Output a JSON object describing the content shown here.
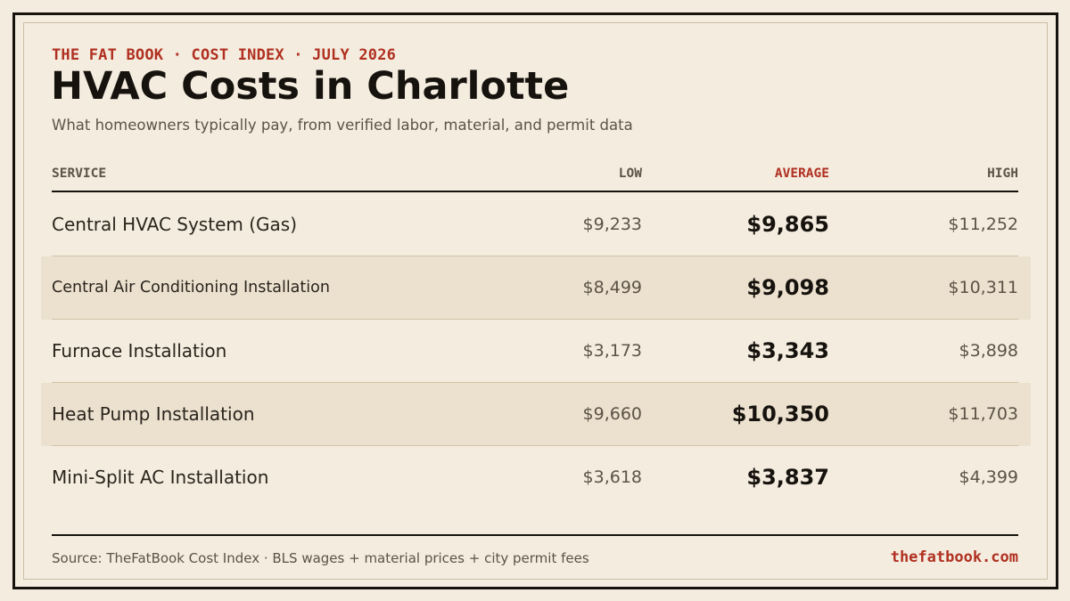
{
  "header": {
    "eyebrow": "THE FAT BOOK · COST INDEX · JULY 2026",
    "title": "HVAC Costs in Charlotte",
    "subtitle": "What homeowners typically pay, from verified labor, material, and permit data"
  },
  "table": {
    "columns": {
      "service": "SERVICE",
      "low": "LOW",
      "average": "AVERAGE",
      "high": "HIGH"
    },
    "rows": [
      {
        "service": "Central HVAC System (Gas)",
        "low": "$9,233",
        "average": "$9,865",
        "high": "$11,252"
      },
      {
        "service": "Central Air Conditioning Installation",
        "low": "$8,499",
        "average": "$9,098",
        "high": "$10,311"
      },
      {
        "service": "Furnace Installation",
        "low": "$3,173",
        "average": "$3,343",
        "high": "$3,898"
      },
      {
        "service": "Heat Pump Installation",
        "low": "$9,660",
        "average": "$10,350",
        "high": "$11,703"
      },
      {
        "service": "Mini-Split AC Installation",
        "low": "$3,618",
        "average": "$3,837",
        "high": "$4,399"
      }
    ]
  },
  "footer": {
    "source": "Source: TheFatBook Cost Index · BLS wages + material prices + city permit fees",
    "site": "thefatbook.com"
  },
  "colors": {
    "background": "#f4ecdf",
    "accent": "#b03020",
    "ink": "#16120d",
    "row_shade": "#ece1cf"
  }
}
